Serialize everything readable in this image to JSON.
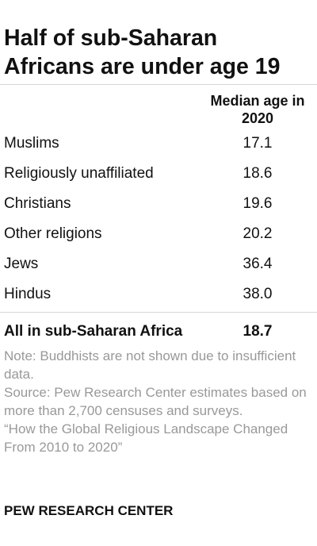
{
  "title": "Half of sub-Saharan Africans are under age 19",
  "chart_data": {
    "type": "table",
    "column_header": "Median age in 2020",
    "rows": [
      {
        "label": "Muslims",
        "value": "17.1"
      },
      {
        "label": "Religiously unaffiliated",
        "value": "18.6"
      },
      {
        "label": "Christians",
        "value": "19.6"
      },
      {
        "label": "Other religions",
        "value": "20.2"
      },
      {
        "label": "Jews",
        "value": "36.4"
      },
      {
        "label": "Hindus",
        "value": "38.0"
      }
    ],
    "total": {
      "label": "All in sub-Saharan Africa",
      "value": "18.7"
    }
  },
  "notes": {
    "note": "Note: Buddhists are not shown due to insufficient data.",
    "source": "Source: Pew Research Center estimates based on more than 2,700 censuses and surveys.",
    "report": "“How the Global Religious Landscape Changed From 2010 to 2020”"
  },
  "brand": "PEW RESEARCH CENTER",
  "colors": {
    "text": "#111111",
    "muted": "#999999",
    "rule": "#d6d6d6"
  }
}
